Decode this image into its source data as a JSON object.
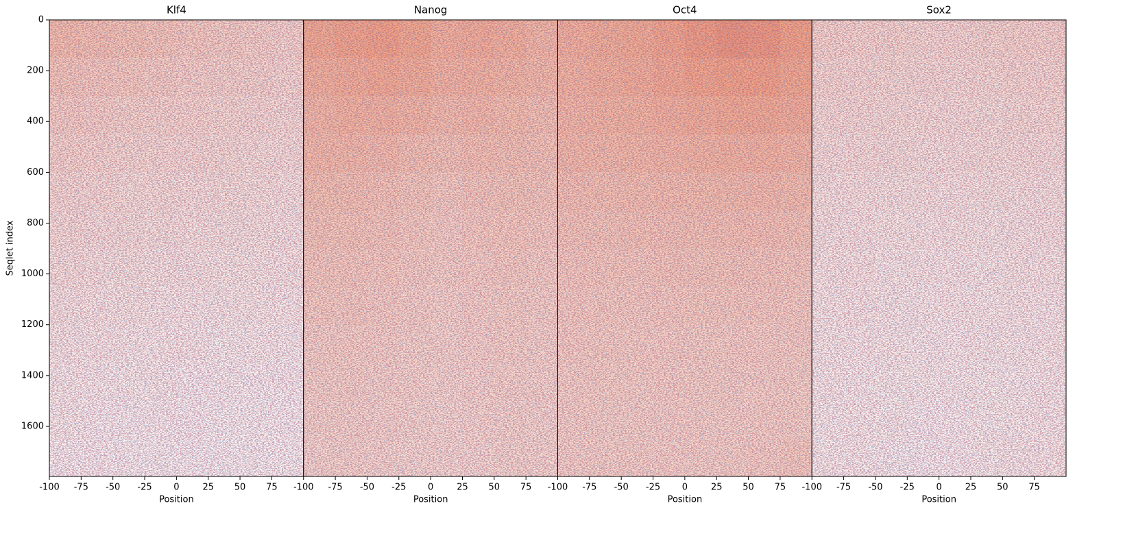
{
  "chart_data": [
    {
      "type": "heatmap",
      "title": "Klf4",
      "xlabel": "Position",
      "ylabel": "Seqlet index",
      "xlim": [
        -100,
        100
      ],
      "xticks": [
        -100,
        -75,
        -50,
        -25,
        0,
        25,
        50,
        75
      ],
      "ylim": [
        0,
        1797
      ],
      "y_inverted": true,
      "yticks": [
        0,
        200,
        400,
        600,
        800,
        1000,
        1200,
        1400,
        1600
      ],
      "colormap": "RdBu_r",
      "vlim": [
        -1,
        1
      ],
      "x": [
        -100,
        -75,
        -50,
        -25,
        0,
        25,
        50,
        75
      ],
      "y": [
        0,
        150,
        300,
        450,
        600,
        750,
        900,
        1050,
        1200,
        1350,
        1500,
        1650
      ],
      "values": [
        [
          0.32,
          0.3,
          0.28,
          0.26,
          0.24,
          0.22,
          0.2,
          0.18
        ],
        [
          0.26,
          0.25,
          0.24,
          0.22,
          0.2,
          0.19,
          0.18,
          0.16
        ],
        [
          0.22,
          0.2,
          0.19,
          0.18,
          0.17,
          0.16,
          0.15,
          0.14
        ],
        [
          0.18,
          0.17,
          0.16,
          0.15,
          0.15,
          0.14,
          0.13,
          0.12
        ],
        [
          0.15,
          0.14,
          0.13,
          0.13,
          0.12,
          0.12,
          0.11,
          0.1
        ],
        [
          0.13,
          0.12,
          0.12,
          0.11,
          0.1,
          0.1,
          0.1,
          0.09
        ],
        [
          0.11,
          0.1,
          0.1,
          0.09,
          0.09,
          0.08,
          0.08,
          0.08
        ],
        [
          0.09,
          0.08,
          0.08,
          0.07,
          0.07,
          0.07,
          0.07,
          0.06
        ],
        [
          0.07,
          0.07,
          0.06,
          0.06,
          0.06,
          0.05,
          0.05,
          0.05
        ],
        [
          0.06,
          0.05,
          0.05,
          0.05,
          0.04,
          0.04,
          0.04,
          0.04
        ],
        [
          0.05,
          0.04,
          0.04,
          0.04,
          0.04,
          0.03,
          0.03,
          0.03
        ],
        [
          0.04,
          0.04,
          0.03,
          0.03,
          0.03,
          0.03,
          0.03,
          0.03
        ]
      ]
    },
    {
      "type": "heatmap",
      "title": "Nanog",
      "xlabel": "Position",
      "xlim": [
        -100,
        100
      ],
      "xticks": [
        -100,
        -75,
        -50,
        -25,
        0,
        25,
        50,
        75
      ],
      "ylim": [
        0,
        1797
      ],
      "y_inverted": true,
      "colormap": "RdBu_r",
      "vlim": [
        -1,
        1
      ],
      "x": [
        -100,
        -75,
        -50,
        -25,
        0,
        25,
        50,
        75
      ],
      "y": [
        0,
        150,
        300,
        450,
        600,
        750,
        900,
        1050,
        1200,
        1350,
        1500,
        1650
      ],
      "values": [
        [
          0.45,
          0.48,
          0.5,
          0.46,
          0.4,
          0.42,
          0.4,
          0.36
        ],
        [
          0.4,
          0.42,
          0.44,
          0.42,
          0.38,
          0.38,
          0.36,
          0.34
        ],
        [
          0.36,
          0.38,
          0.38,
          0.36,
          0.33,
          0.34,
          0.32,
          0.3
        ],
        [
          0.34,
          0.34,
          0.33,
          0.3,
          0.28,
          0.3,
          0.3,
          0.28
        ],
        [
          0.3,
          0.3,
          0.28,
          0.26,
          0.24,
          0.26,
          0.27,
          0.26
        ],
        [
          0.27,
          0.27,
          0.26,
          0.24,
          0.22,
          0.24,
          0.25,
          0.24
        ],
        [
          0.25,
          0.25,
          0.24,
          0.22,
          0.21,
          0.22,
          0.23,
          0.22
        ],
        [
          0.23,
          0.23,
          0.22,
          0.2,
          0.19,
          0.2,
          0.21,
          0.2
        ],
        [
          0.21,
          0.21,
          0.2,
          0.19,
          0.18,
          0.19,
          0.2,
          0.19
        ],
        [
          0.2,
          0.2,
          0.19,
          0.18,
          0.17,
          0.18,
          0.19,
          0.18
        ],
        [
          0.19,
          0.19,
          0.18,
          0.17,
          0.16,
          0.17,
          0.18,
          0.17
        ],
        [
          0.18,
          0.18,
          0.17,
          0.16,
          0.16,
          0.16,
          0.17,
          0.17
        ]
      ]
    },
    {
      "type": "heatmap",
      "title": "Oct4",
      "xlabel": "Position",
      "xlim": [
        -100,
        100
      ],
      "xticks": [
        -100,
        -75,
        -50,
        -25,
        0,
        25,
        50,
        75
      ],
      "ylim": [
        0,
        1797
      ],
      "y_inverted": true,
      "colormap": "RdBu_r",
      "vlim": [
        -1,
        1
      ],
      "x": [
        -100,
        -75,
        -50,
        -25,
        0,
        25,
        50,
        75
      ],
      "y": [
        0,
        150,
        300,
        450,
        600,
        750,
        900,
        1050,
        1200,
        1350,
        1500,
        1650
      ],
      "values": [
        [
          0.4,
          0.42,
          0.44,
          0.48,
          0.52,
          0.55,
          0.54,
          0.5
        ],
        [
          0.38,
          0.4,
          0.42,
          0.45,
          0.48,
          0.5,
          0.5,
          0.46
        ],
        [
          0.36,
          0.37,
          0.38,
          0.4,
          0.42,
          0.44,
          0.44,
          0.42
        ],
        [
          0.34,
          0.34,
          0.35,
          0.36,
          0.37,
          0.38,
          0.38,
          0.36
        ],
        [
          0.3,
          0.3,
          0.31,
          0.32,
          0.32,
          0.33,
          0.33,
          0.32
        ],
        [
          0.27,
          0.27,
          0.28,
          0.28,
          0.29,
          0.29,
          0.29,
          0.28
        ],
        [
          0.25,
          0.25,
          0.25,
          0.26,
          0.26,
          0.26,
          0.26,
          0.25
        ],
        [
          0.23,
          0.23,
          0.23,
          0.24,
          0.24,
          0.24,
          0.24,
          0.23
        ],
        [
          0.22,
          0.22,
          0.22,
          0.22,
          0.22,
          0.22,
          0.22,
          0.22
        ],
        [
          0.21,
          0.21,
          0.21,
          0.21,
          0.21,
          0.21,
          0.21,
          0.21
        ],
        [
          0.2,
          0.2,
          0.2,
          0.2,
          0.2,
          0.2,
          0.21,
          0.21
        ],
        [
          0.2,
          0.2,
          0.2,
          0.2,
          0.2,
          0.21,
          0.22,
          0.24
        ]
      ]
    },
    {
      "type": "heatmap",
      "title": "Sox2",
      "xlabel": "Position",
      "xlim": [
        -100,
        100
      ],
      "xticks": [
        -100,
        -75,
        -50,
        -25,
        0,
        25,
        50,
        75
      ],
      "ylim": [
        0,
        1797
      ],
      "y_inverted": true,
      "colormap": "RdBu_r",
      "vlim": [
        -1,
        1
      ],
      "x": [
        -100,
        -75,
        -50,
        -25,
        0,
        25,
        50,
        75
      ],
      "y": [
        0,
        150,
        300,
        450,
        600,
        750,
        900,
        1050,
        1200,
        1350,
        1500,
        1650
      ],
      "values": [
        [
          0.18,
          0.17,
          0.17,
          0.16,
          0.16,
          0.17,
          0.18,
          0.18
        ],
        [
          0.16,
          0.15,
          0.15,
          0.15,
          0.14,
          0.15,
          0.16,
          0.16
        ],
        [
          0.14,
          0.14,
          0.13,
          0.13,
          0.13,
          0.13,
          0.14,
          0.14
        ],
        [
          0.12,
          0.12,
          0.12,
          0.11,
          0.11,
          0.12,
          0.12,
          0.12
        ],
        [
          0.1,
          0.1,
          0.1,
          0.1,
          0.09,
          0.1,
          0.1,
          0.1
        ],
        [
          0.09,
          0.09,
          0.08,
          0.08,
          0.08,
          0.08,
          0.09,
          0.09
        ],
        [
          0.08,
          0.08,
          0.07,
          0.07,
          0.07,
          0.07,
          0.08,
          0.08
        ],
        [
          0.07,
          0.07,
          0.06,
          0.06,
          0.06,
          0.06,
          0.07,
          0.07
        ],
        [
          0.06,
          0.06,
          0.06,
          0.05,
          0.05,
          0.06,
          0.06,
          0.06
        ],
        [
          0.06,
          0.05,
          0.05,
          0.05,
          0.05,
          0.05,
          0.05,
          0.06
        ],
        [
          0.05,
          0.05,
          0.05,
          0.04,
          0.04,
          0.05,
          0.05,
          0.06
        ],
        [
          0.05,
          0.05,
          0.04,
          0.04,
          0.04,
          0.05,
          0.06,
          0.07
        ]
      ]
    }
  ]
}
